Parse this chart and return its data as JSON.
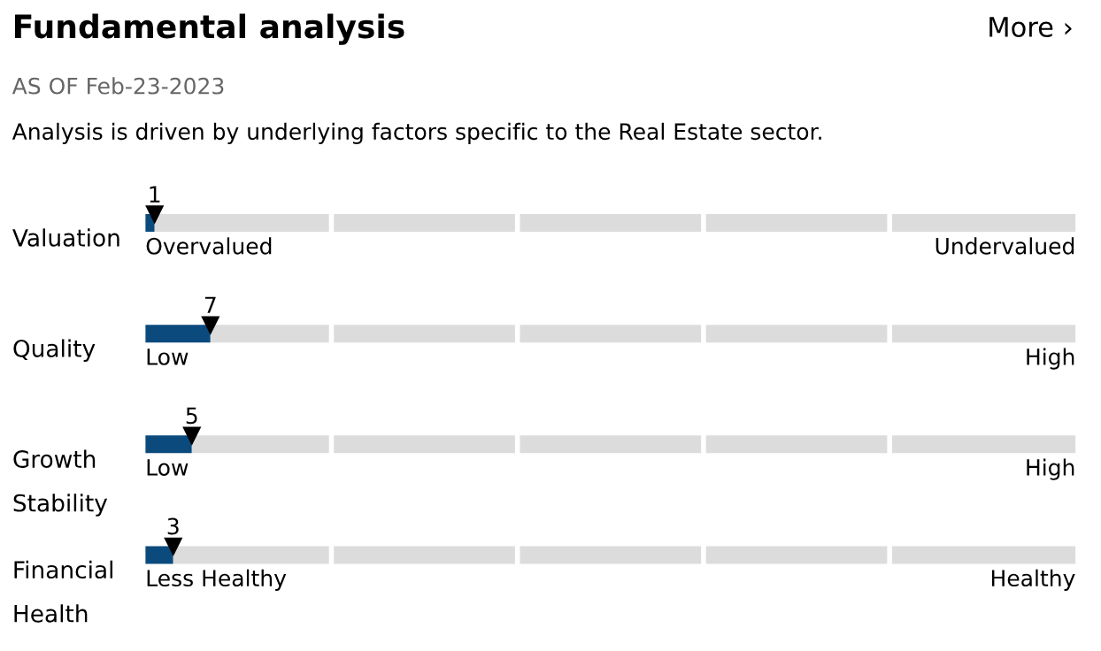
{
  "chart_data": {
    "type": "bar",
    "orientation": "horizontal",
    "stacked": true,
    "title": "Fundamental analysis",
    "subtitle": "AS OF Feb-23-2023",
    "categories": [
      "Valuation",
      "Quality",
      "Growth Stability",
      "Financial Health"
    ],
    "series": [
      {
        "color": "#0b4a7d",
        "values": [
          1,
          7,
          5,
          3
        ],
        "value_labels": [
          "1",
          "7",
          "5",
          "3"
        ]
      },
      {
        "color": "#dcdcdc",
        "values": [
          99,
          93,
          95,
          97
        ],
        "value_labels": [
          null,
          null,
          null,
          null
        ]
      }
    ],
    "marker": "triangle",
    "annotations": [
      "More ›",
      "Analysis is driven by underlying factors specific to the Real Estate sector.",
      "Overvalued",
      "Undervalued",
      "Low",
      "High",
      "Low",
      "High",
      "Less Healthy",
      "Healthy"
    ]
  }
}
